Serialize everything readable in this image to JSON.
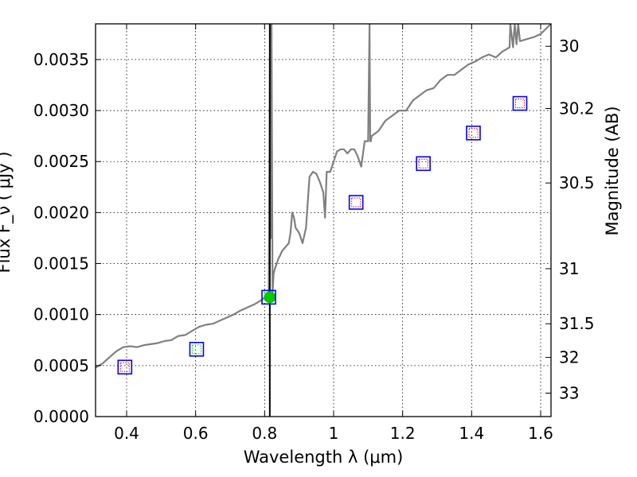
{
  "chart_data": {
    "type": "line",
    "xlabel": "Wavelength  λ (μm)",
    "ylabel": "Flux  F_ν  ( μJy )",
    "ylabel_right": "Magnitude (AB)",
    "xlim": [
      0.31,
      1.63
    ],
    "ylim": [
      0.0,
      0.00385
    ],
    "grid": true,
    "x_ticks": [
      0.4,
      0.6,
      0.8,
      1.0,
      1.2,
      1.4,
      1.6
    ],
    "x_tick_labels": [
      "0.4",
      "0.6",
      "0.8",
      "1",
      "1.2",
      "1.4",
      "1.6"
    ],
    "y_ticks": [
      0.0,
      0.0005,
      0.001,
      0.0015,
      0.002,
      0.0025,
      0.003,
      0.0035
    ],
    "y_tick_labels": [
      "0.0000",
      "0.0005",
      "0.0010",
      "0.0015",
      "0.0020",
      "0.0025",
      "0.0030",
      "0.0035"
    ],
    "right_ticks": [
      {
        "flux": 0.00363,
        "label": "30"
      },
      {
        "flux": 0.00302,
        "label": "30.2"
      },
      {
        "flux": 0.00229,
        "label": "30.5"
      },
      {
        "flux": 0.00145,
        "label": "31"
      },
      {
        "flux": 0.00091,
        "label": "31.5"
      },
      {
        "flux": 0.00058,
        "label": "32"
      },
      {
        "flux": 0.00023,
        "label": "33"
      }
    ],
    "vertical_line_x": 0.815,
    "series": [
      {
        "kind": "spectrum",
        "color": "#808080",
        "x": [
          0.31,
          0.33,
          0.35,
          0.37,
          0.39,
          0.41,
          0.43,
          0.45,
          0.47,
          0.49,
          0.51,
          0.53,
          0.55,
          0.57,
          0.59,
          0.61,
          0.63,
          0.65,
          0.67,
          0.69,
          0.71,
          0.73,
          0.75,
          0.77,
          0.79,
          0.805,
          0.812,
          0.816,
          0.818,
          0.82,
          0.823,
          0.826,
          0.83,
          0.835,
          0.84,
          0.845,
          0.85,
          0.86,
          0.87,
          0.875,
          0.88,
          0.885,
          0.89,
          0.9,
          0.91,
          0.92,
          0.93,
          0.94,
          0.95,
          0.96,
          0.97,
          0.975,
          0.98,
          0.985,
          0.99,
          1.0,
          1.01,
          1.02,
          1.03,
          1.04,
          1.05,
          1.06,
          1.07,
          1.08,
          1.09,
          1.1,
          1.104,
          1.106,
          1.108,
          1.11,
          1.13,
          1.15,
          1.17,
          1.19,
          1.21,
          1.23,
          1.25,
          1.27,
          1.29,
          1.31,
          1.33,
          1.35,
          1.37,
          1.39,
          1.41,
          1.43,
          1.45,
          1.47,
          1.49,
          1.5,
          1.51,
          1.512,
          1.52,
          1.525,
          1.53,
          1.535,
          1.54,
          1.56,
          1.58,
          1.6,
          1.615,
          1.63
        ],
        "y": [
          0.00048,
          0.00052,
          0.00058,
          0.00064,
          0.00068,
          0.00069,
          0.00068,
          0.0007,
          0.00071,
          0.00072,
          0.00074,
          0.00075,
          0.00079,
          0.0008,
          0.00084,
          0.00088,
          0.0009,
          0.00091,
          0.00094,
          0.00097,
          0.001,
          0.00104,
          0.00107,
          0.0011,
          0.00114,
          0.00118,
          0.00115,
          0.00385,
          0.00175,
          0.00385,
          0.0012,
          0.0014,
          0.00145,
          0.0015,
          0.00155,
          0.00158,
          0.00162,
          0.00166,
          0.0017,
          0.0018,
          0.002,
          0.00195,
          0.00185,
          0.0018,
          0.0017,
          0.00185,
          0.00235,
          0.0024,
          0.00238,
          0.0023,
          0.0022,
          0.00195,
          0.0024,
          0.0024,
          0.0024,
          0.0025,
          0.0026,
          0.00262,
          0.00262,
          0.00258,
          0.00262,
          0.00262,
          0.00255,
          0.00245,
          0.0027,
          0.0027,
          0.00385,
          0.0027,
          0.0027,
          0.00275,
          0.0028,
          0.0029,
          0.00295,
          0.003,
          0.003,
          0.0031,
          0.00315,
          0.0032,
          0.00322,
          0.0033,
          0.00335,
          0.00335,
          0.0034,
          0.00345,
          0.00348,
          0.00352,
          0.00355,
          0.00352,
          0.00358,
          0.0036,
          0.00362,
          0.00385,
          0.00362,
          0.00385,
          0.00365,
          0.00385,
          0.00368,
          0.0037,
          0.00372,
          0.00375,
          0.0038,
          0.00385
        ]
      },
      {
        "kind": "observed",
        "marker": "green-filled-circle",
        "color": "#00cc00",
        "x": [
          0.815
        ],
        "y": [
          0.00117
        ]
      },
      {
        "kind": "model-photometry",
        "marker": "blue-square",
        "color": "#0000ff",
        "x": [
          0.395,
          0.603,
          0.812,
          1.065,
          1.26,
          1.405,
          1.54
        ],
        "y": [
          0.000485,
          0.00066,
          0.00117,
          0.0021,
          0.00248,
          0.00278,
          0.00307
        ]
      },
      {
        "kind": "upper-limits",
        "marker": "red-dotted-square",
        "color": "#ff0000",
        "x": [
          0.395,
          1.065,
          1.26,
          1.405,
          1.54
        ],
        "y": [
          0.000485,
          0.0021,
          0.00248,
          0.00278,
          0.00307
        ]
      },
      {
        "kind": "detection-box",
        "marker": "green-dotted-square",
        "color": "#00cc00",
        "x": [
          0.603
        ],
        "y": [
          0.00066
        ]
      }
    ]
  }
}
